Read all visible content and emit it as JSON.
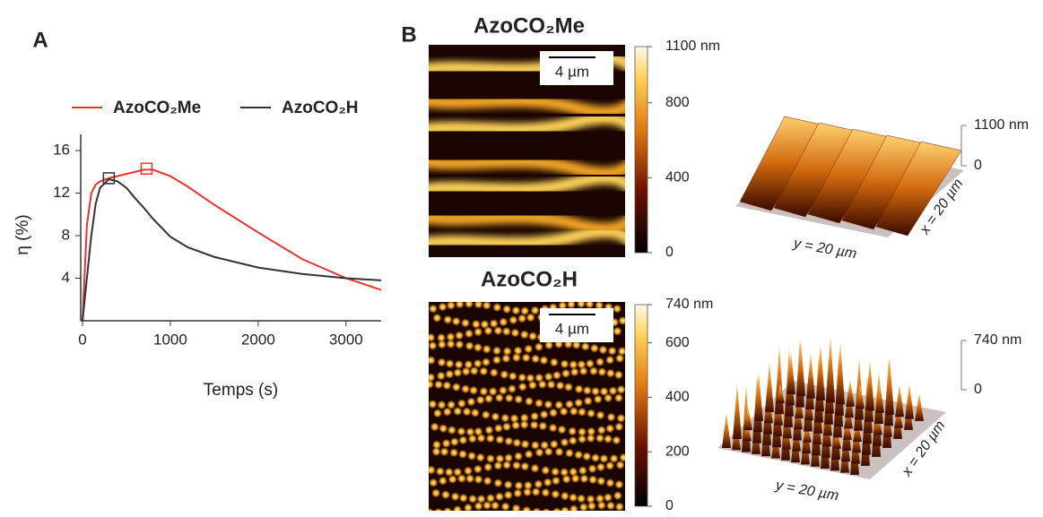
{
  "chart_data": [
    {
      "type": "line",
      "label": "A",
      "x_label": "Temps (s)",
      "y_label": "η (%)",
      "x": [
        0,
        50,
        100,
        150,
        200,
        300,
        400,
        500,
        600,
        700,
        800,
        1000,
        1200,
        1500,
        2000,
        2500,
        3000,
        3400
      ],
      "series": [
        {
          "name": "AzoCO₂Me",
          "color": "#e8322e",
          "values": [
            0,
            9,
            12,
            12.8,
            13.1,
            13.4,
            13.6,
            13.8,
            14.0,
            14.2,
            14.2,
            13.6,
            12.6,
            10.9,
            8.3,
            5.8,
            4.0,
            2.9
          ],
          "marker": {
            "x": 730,
            "y": 14.3
          }
        },
        {
          "name": "AzoCO₂H",
          "color": "#333333",
          "values": [
            0,
            4,
            8,
            11,
            12.5,
            13.3,
            13.1,
            12.5,
            11.5,
            10.6,
            9.6,
            7.9,
            6.9,
            6.0,
            5.0,
            4.4,
            4.0,
            3.8
          ],
          "marker": {
            "x": 300,
            "y": 13.4
          }
        }
      ],
      "xlim": [
        0,
        3400
      ],
      "xticks": [
        0,
        1000,
        2000,
        3000
      ],
      "ylim": [
        0,
        16
      ],
      "yticks": [
        4,
        8,
        12,
        16
      ],
      "legend": "top"
    },
    {
      "type": "afm",
      "label": "B",
      "panels": [
        {
          "title": "AzoCO₂Me",
          "pattern": "stripes",
          "scale_bar": "4 µm",
          "colorbar": {
            "lim": [
              0,
              1100
            ],
            "ticks": [
              0,
              400,
              800,
              {
                "value": 1100,
                "label": "1100 nm"
              }
            ]
          },
          "surface": {
            "zlim": [
              0,
              1100
            ],
            "zticks": [
              0,
              {
                "value": 1100,
                "label": "1100 nm"
              }
            ],
            "y_label": "y = 20 µm",
            "x_label": "x = 20 µm"
          }
        },
        {
          "title": "AzoCO₂H",
          "pattern": "dots",
          "scale_bar": "4 µm",
          "colorbar": {
            "lim": [
              0,
              740
            ],
            "ticks": [
              0,
              200,
              400,
              600,
              {
                "value": 740,
                "label": "740 nm"
              }
            ]
          },
          "surface": {
            "zlim": [
              0,
              740
            ],
            "zticks": [
              0,
              {
                "value": 740,
                "label": "740 nm"
              }
            ],
            "y_label": "y = 20 µm",
            "x_label": "x = 20 µm"
          }
        }
      ]
    }
  ]
}
